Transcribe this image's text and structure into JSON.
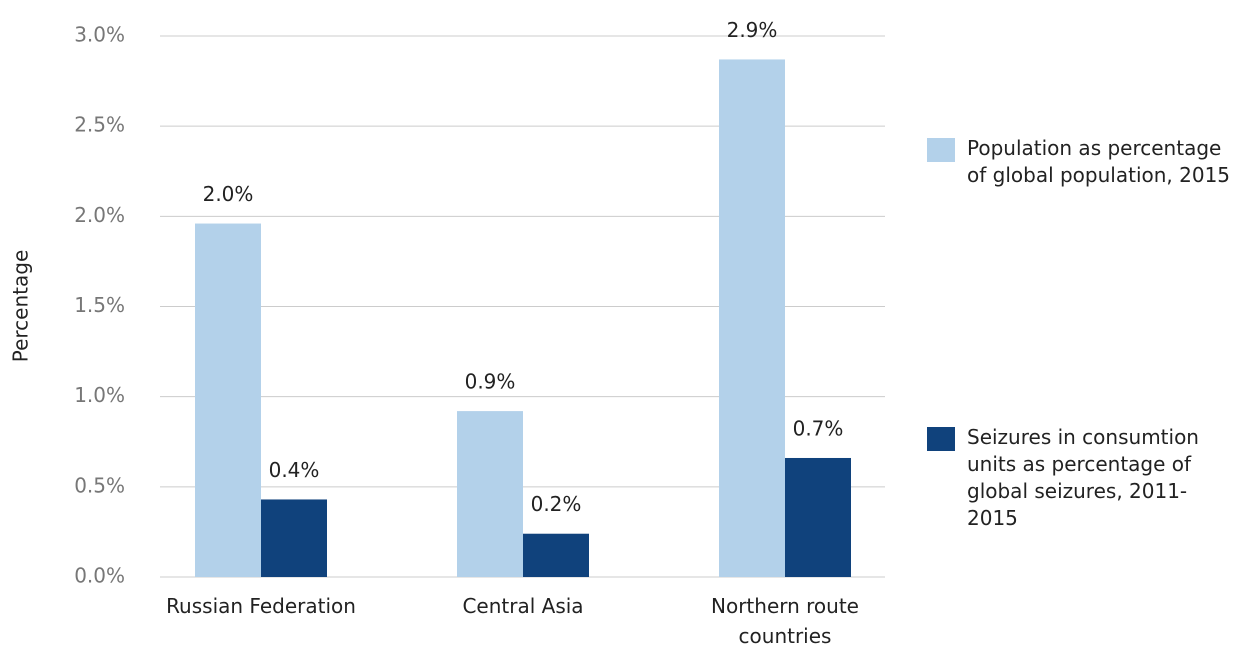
{
  "chart_data": {
    "type": "bar",
    "y_label": "Percentage",
    "categories": [
      "Russian Federation",
      "Central Asia",
      "Northern route countries"
    ],
    "series": [
      {
        "name": "Population as percentage of global population, 2015",
        "color": "#b3d1ea",
        "values": [
          1.96,
          0.92,
          2.87
        ],
        "value_labels": [
          "2.0%",
          "0.9%",
          "2.9%"
        ]
      },
      {
        "name": "Seizures in consumtion units as percentage of global seizures, 2011-2015",
        "color": "#10427c",
        "values": [
          0.43,
          0.24,
          0.66
        ],
        "value_labels": [
          "0.4%",
          "0.2%",
          "0.7%"
        ]
      }
    ],
    "ylim": [
      0,
      3
    ],
    "yticks": [
      {
        "value": 0,
        "label": "0.0%"
      },
      {
        "value": 0.5,
        "label": "0.5%"
      },
      {
        "value": 1,
        "label": "1.0%"
      },
      {
        "value": 1.5,
        "label": "1.5%"
      },
      {
        "value": 2,
        "label": "2.0%"
      },
      {
        "value": 2.5,
        "label": "2.5%"
      },
      {
        "value": 3,
        "label": "3.0%"
      }
    ],
    "grid": true,
    "legend": "right"
  }
}
